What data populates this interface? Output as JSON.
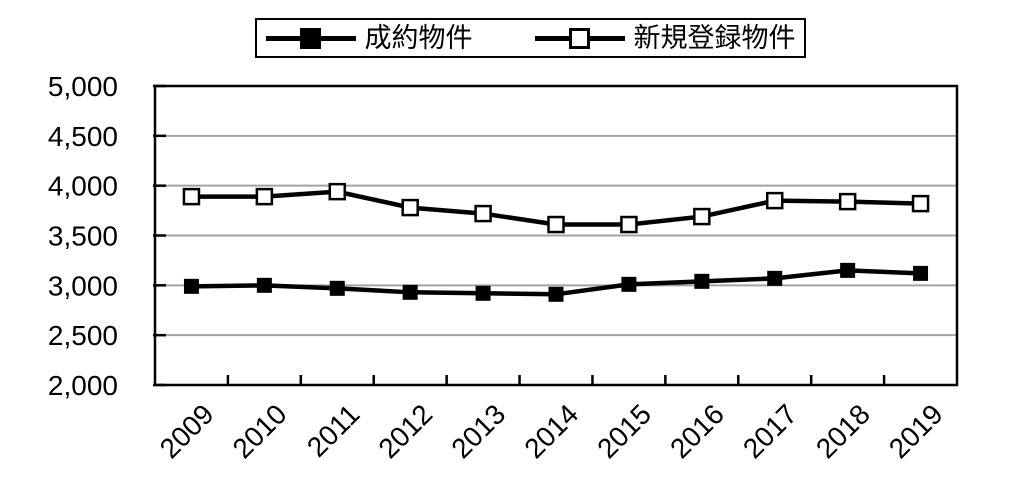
{
  "chart_data": {
    "type": "line",
    "categories": [
      "2009",
      "2010",
      "2011",
      "2012",
      "2013",
      "2014",
      "2015",
      "2016",
      "2017",
      "2018",
      "2019"
    ],
    "series": [
      {
        "name": "成約物件",
        "marker": "filled-square",
        "values": [
          2990,
          3000,
          2970,
          2930,
          2920,
          2910,
          3010,
          3040,
          3070,
          3150,
          3120
        ]
      },
      {
        "name": "新規登録物件",
        "marker": "open-square",
        "values": [
          3890,
          3890,
          3940,
          3780,
          3720,
          3610,
          3610,
          3690,
          3850,
          3840,
          3820
        ]
      }
    ],
    "title": "",
    "xlabel": "",
    "ylabel": "",
    "ylim": [
      2000,
      5000
    ],
    "ytick_step": 500,
    "ytick_labels": [
      "2,000",
      "2,500",
      "3,000",
      "3,500",
      "4,000",
      "4,500",
      "5,000"
    ],
    "grid": "horizontal",
    "legend_position": "top-center"
  },
  "colors": {
    "series_line": "#000000",
    "gridline": "#a3a3a3",
    "plot_border": "#000000",
    "open_marker_fill": "#ffffff",
    "background": "#ffffff"
  }
}
